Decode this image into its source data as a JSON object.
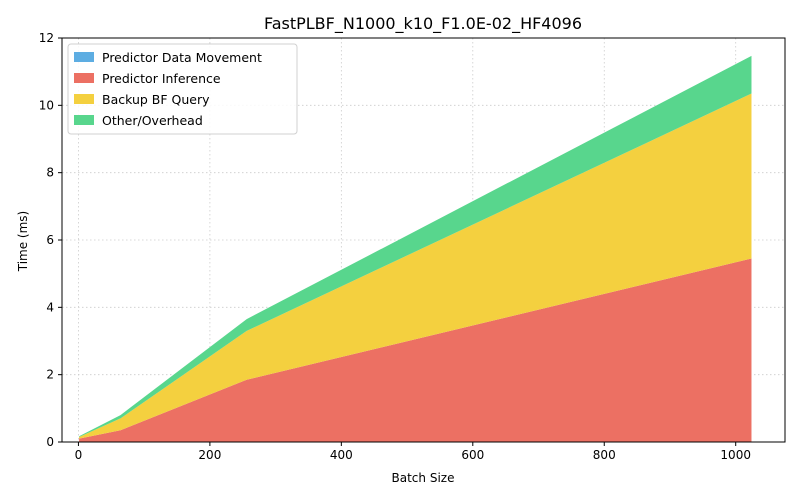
{
  "chart_data": {
    "type": "area",
    "stacked": true,
    "title": "FastPLBF_N1000_k10_F1.0E-02_HF4096",
    "xlabel": "Batch Size",
    "ylabel": "Time (ms)",
    "xlim": [
      -25,
      1075
    ],
    "ylim": [
      0,
      12
    ],
    "xticks": [
      0,
      200,
      400,
      600,
      800,
      1000
    ],
    "yticks": [
      0,
      2,
      4,
      6,
      8,
      10,
      12
    ],
    "grid": true,
    "legend_position": "top-left",
    "x": [
      1,
      64,
      256,
      1024
    ],
    "series": [
      {
        "name": "Predictor Data Movement",
        "color": "#5dade2",
        "values": [
          0.0,
          0.0,
          0.0,
          0.0
        ]
      },
      {
        "name": "Predictor Inference",
        "color": "#ec7063",
        "values": [
          0.1,
          0.35,
          1.85,
          5.45
        ]
      },
      {
        "name": "Backup BF Query",
        "color": "#f4d03f",
        "values": [
          0.05,
          0.35,
          1.45,
          4.9
        ]
      },
      {
        "name": "Other/Overhead",
        "color": "#58d68d",
        "values": [
          0.02,
          0.1,
          0.35,
          1.12
        ]
      }
    ]
  }
}
